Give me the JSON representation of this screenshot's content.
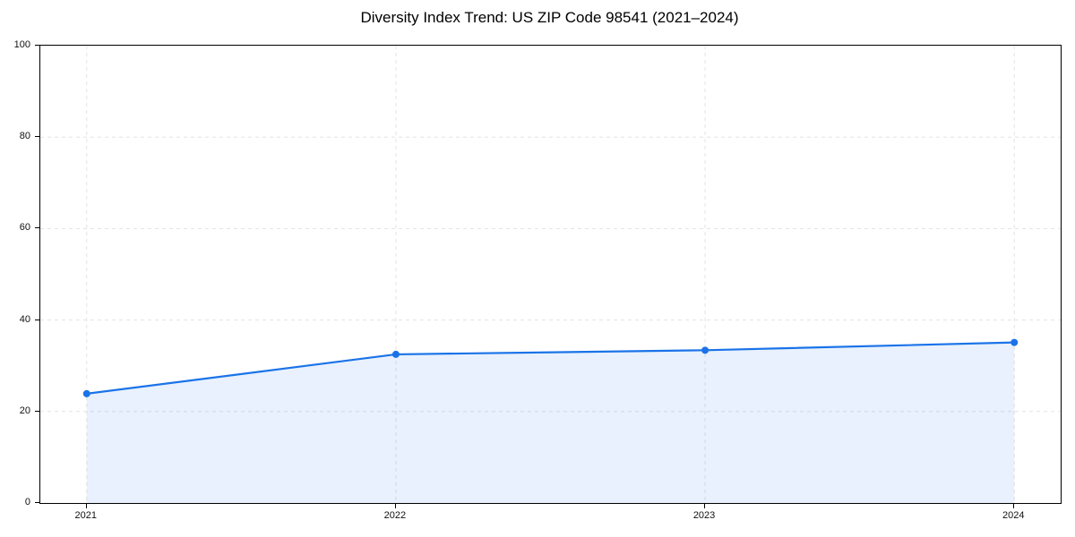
{
  "figure": {
    "title": "Diversity Index Trend: US ZIP Code 98541 (2021–2024)"
  },
  "chart_data": {
    "type": "area",
    "title": "Diversity Index Trend: US ZIP Code 98541 (2021–2024)",
    "x": [
      2021,
      2022,
      2023,
      2024
    ],
    "values": [
      23.9,
      32.5,
      33.4,
      35.1
    ],
    "xlabel": "",
    "ylabel": "",
    "ylim": [
      0,
      100
    ],
    "yticks": [
      0,
      20,
      40,
      60,
      80,
      100
    ],
    "xticks": [
      2021,
      2022,
      2023,
      2024
    ],
    "x_margin": 0.05,
    "grid": true,
    "grid_style": "dashed",
    "legend_position": "none",
    "line_color": "#1a73e8",
    "marker_color": "#1a73e8",
    "fill_color": "rgba(26,115,232,0.10)",
    "grid_color": "#e3e3e3",
    "spine_color": "#000000"
  }
}
